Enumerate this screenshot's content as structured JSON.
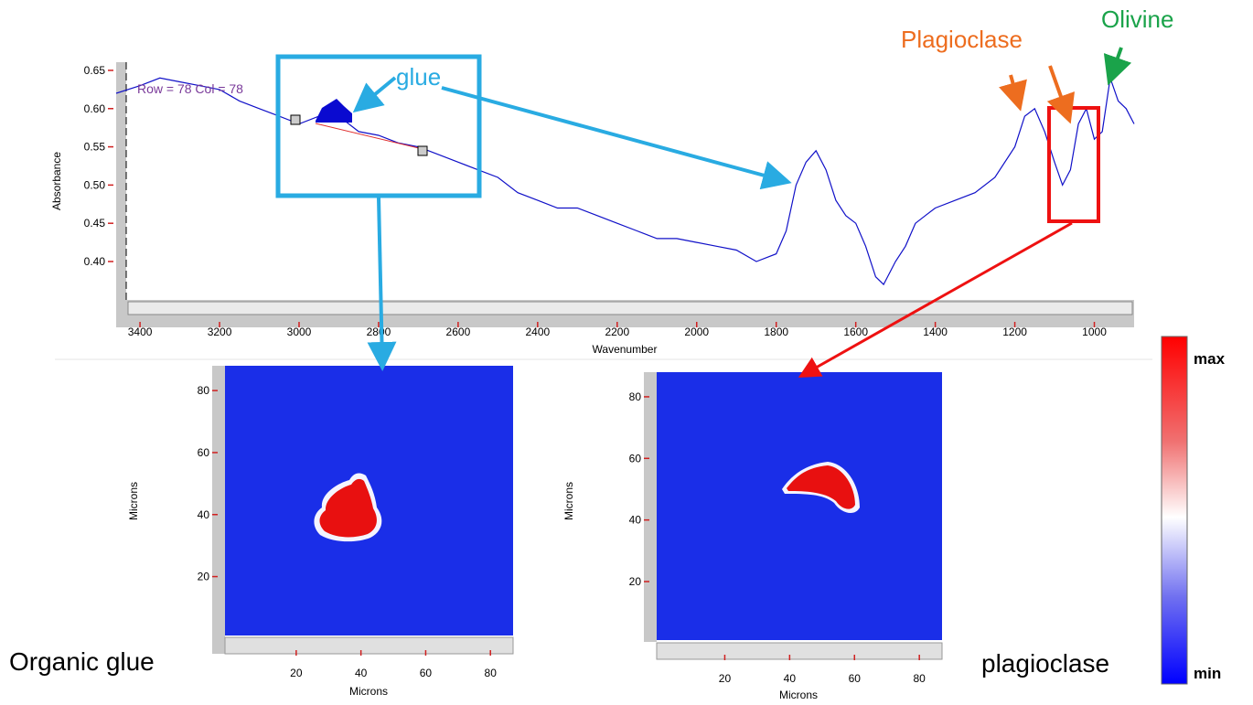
{
  "chart_data": [
    {
      "type": "line",
      "y_label": "Absorbance",
      "x_label": "Wavenumber",
      "cursor_label": "Row = 78 Col = 78",
      "color": "#1010c8",
      "xlim": [
        3460,
        900
      ],
      "xticks": [
        3400,
        3200,
        3000,
        2800,
        2600,
        2400,
        2200,
        2000,
        1800,
        1600,
        1400,
        1200,
        1000
      ],
      "ylim": [
        0.35,
        0.66
      ],
      "yticks": [
        {
          "value": 0.4,
          "label": "0.40"
        },
        0.45,
        {
          "value": 0.5,
          "label": "0.50"
        },
        0.55,
        {
          "value": 0.6,
          "label": "0.60"
        },
        0.65
      ],
      "x": [
        3460,
        3400,
        3350,
        3300,
        3250,
        3200,
        3150,
        3100,
        3050,
        3000,
        2950,
        2900,
        2850,
        2800,
        2750,
        2700,
        2650,
        2600,
        2550,
        2500,
        2450,
        2400,
        2350,
        2300,
        2250,
        2200,
        2150,
        2100,
        2050,
        2000,
        1950,
        1900,
        1850,
        1800,
        1775,
        1750,
        1725,
        1700,
        1675,
        1650,
        1625,
        1600,
        1575,
        1550,
        1530,
        1500,
        1475,
        1450,
        1425,
        1400,
        1350,
        1300,
        1250,
        1200,
        1175,
        1150,
        1125,
        1100,
        1080,
        1060,
        1040,
        1020,
        1000,
        980,
        960,
        940,
        920,
        900
      ],
      "values": [
        0.62,
        0.63,
        0.64,
        0.635,
        0.63,
        0.625,
        0.61,
        0.6,
        0.59,
        0.58,
        0.59,
        0.59,
        0.57,
        0.565,
        0.555,
        0.55,
        0.54,
        0.53,
        0.52,
        0.51,
        0.49,
        0.48,
        0.47,
        0.47,
        0.46,
        0.45,
        0.44,
        0.43,
        0.43,
        0.425,
        0.42,
        0.415,
        0.4,
        0.41,
        0.44,
        0.5,
        0.53,
        0.545,
        0.52,
        0.48,
        0.46,
        0.45,
        0.42,
        0.38,
        0.37,
        0.4,
        0.42,
        0.45,
        0.46,
        0.47,
        0.48,
        0.49,
        0.51,
        0.55,
        0.59,
        0.6,
        0.57,
        0.53,
        0.5,
        0.52,
        0.58,
        0.6,
        0.56,
        0.57,
        0.64,
        0.61,
        0.6,
        0.58
      ],
      "annotations": [
        "glue",
        "Plagioclase",
        "Olivine"
      ]
    },
    {
      "type": "heatmap",
      "caption": "Organic glue",
      "x_label": "Microns",
      "y_label": "Microns",
      "xlim": [
        -2,
        87
      ],
      "ylim": [
        1,
        88
      ],
      "xticks": [
        20,
        40,
        60,
        80
      ],
      "yticks": [
        20,
        40,
        60,
        80
      ]
    },
    {
      "type": "heatmap",
      "caption": "plagioclase",
      "x_label": "Microns",
      "y_label": "Microns",
      "xlim": [
        -1,
        87
      ],
      "ylim": [
        1,
        88
      ],
      "xticks": [
        20,
        40,
        60,
        80
      ],
      "yticks": [
        20,
        40,
        60,
        80
      ]
    }
  ],
  "colorbar": {
    "max_label": "max",
    "min_label": "min"
  }
}
